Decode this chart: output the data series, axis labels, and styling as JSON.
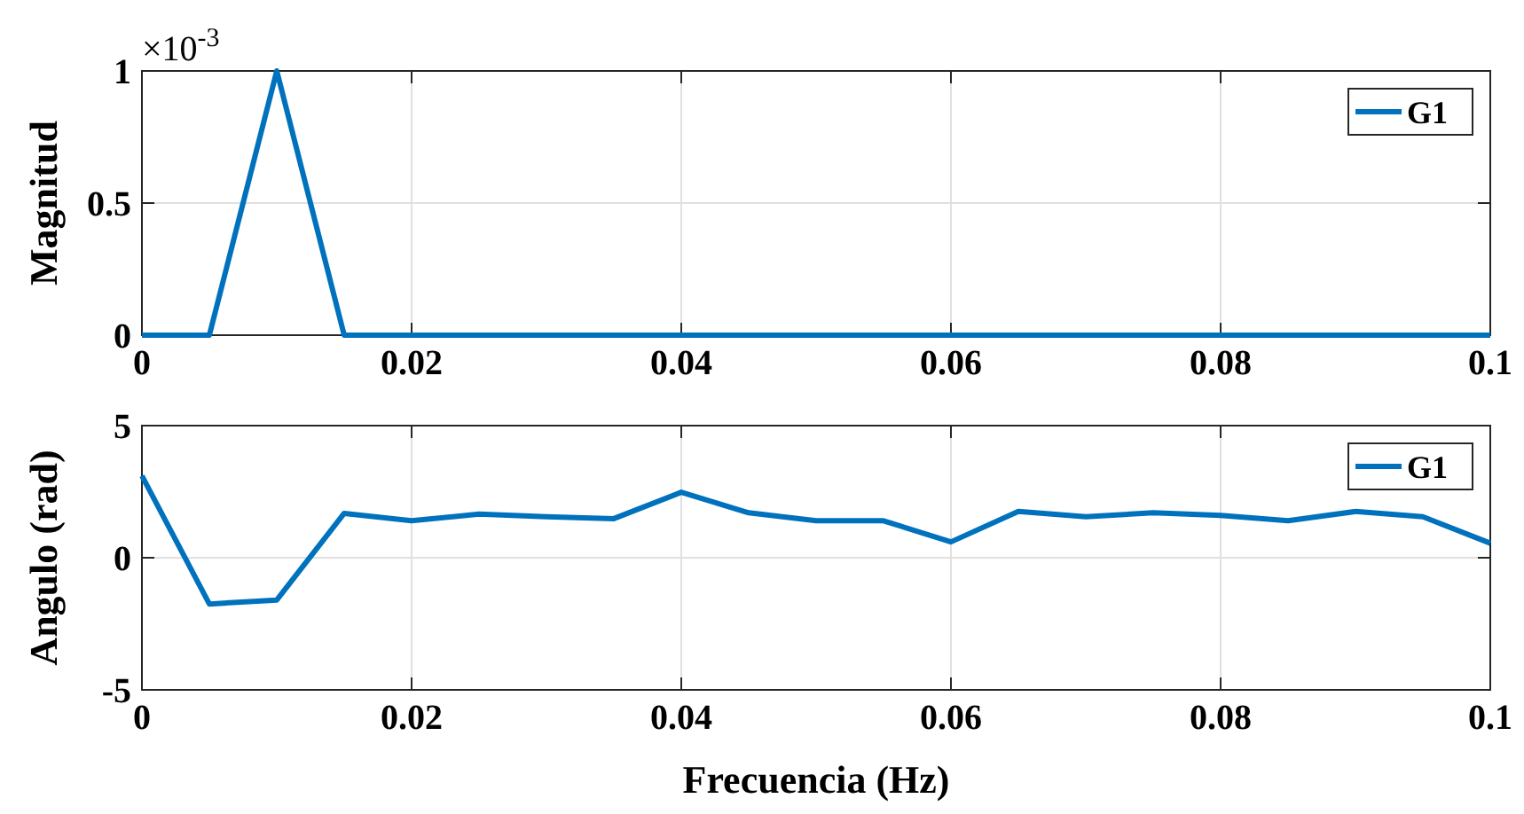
{
  "chart_data": [
    {
      "type": "line",
      "ylabel": "Magnitud",
      "x": [
        0,
        0.005,
        0.01,
        0.015,
        0.02,
        0.025,
        0.03,
        0.035,
        0.04,
        0.045,
        0.05,
        0.055,
        0.06,
        0.065,
        0.07,
        0.075,
        0.08,
        0.085,
        0.09,
        0.095,
        0.1
      ],
      "series": [
        {
          "name": "G1",
          "color": "#0072bd",
          "values": [
            0,
            0,
            1,
            0,
            0,
            0,
            0,
            0,
            0,
            0,
            0,
            0,
            0,
            0,
            0,
            0,
            0,
            0,
            0,
            0,
            0
          ]
        }
      ],
      "xlim": [
        0,
        0.1
      ],
      "xticks": [
        0,
        0.02,
        0.04,
        0.06,
        0.08,
        0.1
      ],
      "ylim": [
        0,
        1
      ],
      "yticks": [
        0,
        0.5,
        1
      ],
      "annotations": [
        "×10$^{-3}$"
      ],
      "grid": true,
      "legend": "top right",
      "marker": "none",
      "line_style": "solid"
    },
    {
      "type": "line",
      "xlabel": "Frecuencia (Hz)",
      "ylabel": "Angulo (rad)",
      "x": [
        0,
        0.005,
        0.01,
        0.015,
        0.02,
        0.025,
        0.03,
        0.035,
        0.04,
        0.045,
        0.05,
        0.055,
        0.06,
        0.065,
        0.07,
        0.075,
        0.08,
        0.085,
        0.09,
        0.095,
        0.1
      ],
      "series": [
        {
          "name": "G1",
          "color": "#0072bd",
          "values": [
            3.1,
            -1.75,
            -1.6,
            1.68,
            1.4,
            1.65,
            1.55,
            1.48,
            2.48,
            1.7,
            1.4,
            1.4,
            0.6,
            1.75,
            1.55,
            1.7,
            1.6,
            1.4,
            1.75,
            1.55,
            0.55
          ]
        }
      ],
      "xlim": [
        0,
        0.1
      ],
      "xticks": [
        0,
        0.02,
        0.04,
        0.06,
        0.08,
        0.1
      ],
      "ylim": [
        -5,
        5
      ],
      "yticks": [
        -5,
        0,
        5
      ],
      "grid": true,
      "legend": "top right",
      "marker": "none",
      "line_style": "solid"
    }
  ]
}
